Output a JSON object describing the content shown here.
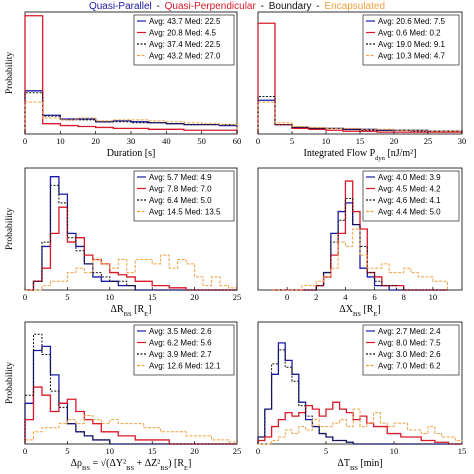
{
  "legend": {
    "series": [
      {
        "name": "Quasi-Parallel",
        "color": "#1a1aa6"
      },
      {
        "name": "Quasi-Perpendicular",
        "color": "#d7192a"
      },
      {
        "name": "Boundary",
        "color": "#111111"
      },
      {
        "name": "Encapsulated",
        "color": "#f0a040"
      }
    ],
    "separator": " - "
  },
  "chart_data": [
    {
      "type": "line",
      "panel": "duration",
      "xlabel": "Duration [s]",
      "ylabel": "Probability",
      "xlim": [
        0,
        60
      ],
      "ylim": [
        0,
        0.65
      ],
      "xticks": [
        "0",
        "10",
        "20",
        "30",
        "40",
        "50",
        "60"
      ],
      "edges": [
        0,
        5,
        10,
        15,
        20,
        25,
        30,
        35,
        40,
        45,
        50,
        55,
        60
      ],
      "series": [
        {
          "values": [
            0.23,
            0.1,
            0.08,
            0.08,
            0.065,
            0.07,
            0.065,
            0.06,
            0.055,
            0.05,
            0.05,
            0.045
          ]
        },
        {
          "values": [
            0.63,
            0.055,
            0.045,
            0.04,
            0.035,
            0.03,
            0.03,
            0.025,
            0.025,
            0.02,
            0.02,
            0.02
          ]
        },
        {
          "values": [
            0.22,
            0.095,
            0.075,
            0.075,
            0.065,
            0.065,
            0.06,
            0.06,
            0.055,
            0.05,
            0.05,
            0.05
          ]
        },
        {
          "values": [
            0.17,
            0.085,
            0.075,
            0.085,
            0.07,
            0.075,
            0.075,
            0.07,
            0.065,
            0.06,
            0.055,
            0.05
          ]
        }
      ],
      "stats": [
        "Avg: 43.7 Med: 22.5",
        "Avg: 20.8 Med: 4.5",
        "Avg: 37.4 Med: 22.5",
        "Avg: 43.2 Med: 27.0"
      ]
    },
    {
      "type": "line",
      "panel": "integrated-flow",
      "xlabel": "Integrated Flow P_dyn [nJ/m²]",
      "ylabel": "",
      "xlim": [
        0,
        30
      ],
      "ylim": [
        0,
        0.65
      ],
      "xticks": [
        "0",
        "5",
        "10",
        "15",
        "20",
        "25",
        "30"
      ],
      "edges": [
        0,
        2.5,
        5,
        7.5,
        10,
        12.5,
        15,
        17.5,
        20,
        22.5,
        25,
        27.5,
        30
      ],
      "series": [
        {
          "values": [
            0.18,
            0.05,
            0.035,
            0.03,
            0.03,
            0.025,
            0.025,
            0.02,
            0.02,
            0.02,
            0.015,
            0.015
          ]
        },
        {
          "values": [
            0.59,
            0.05,
            0.03,
            0.025,
            0.02,
            0.015,
            0.015,
            0.01,
            0.01,
            0.01,
            0.01,
            0.01
          ]
        },
        {
          "values": [
            0.2,
            0.05,
            0.035,
            0.03,
            0.03,
            0.025,
            0.02,
            0.02,
            0.02,
            0.015,
            0.015,
            0.015
          ]
        },
        {
          "values": [
            0.17,
            0.06,
            0.04,
            0.035,
            0.03,
            0.03,
            0.025,
            0.025,
            0.02,
            0.02,
            0.015,
            0.015
          ]
        }
      ],
      "stats": [
        "Avg: 20.6 Med: 7.5",
        "Avg: 0.6 Med: 0.2",
        "Avg: 19.0 Med: 9.1",
        "Avg: 10.3 Med: 4.7"
      ]
    },
    {
      "type": "line",
      "panel": "delta-r",
      "xlabel": "ΔR_BS [R_E]",
      "ylabel": "Probability",
      "xlim": [
        0,
        25
      ],
      "ylim": [
        0,
        0.28
      ],
      "xticks": [
        "0",
        "5",
        "10",
        "15",
        "20",
        "25"
      ],
      "edges": [
        0,
        1,
        2,
        3,
        4,
        5,
        6,
        7,
        8,
        9,
        10,
        11,
        12,
        13,
        14,
        15,
        16,
        17,
        18,
        19,
        20,
        21,
        22,
        23,
        24,
        25
      ],
      "series": [
        {
          "values": [
            0,
            0.02,
            0.1,
            0.26,
            0.22,
            0.13,
            0.1,
            0.06,
            0.03,
            0.02,
            0.02,
            0.01,
            0.01,
            0,
            0,
            0,
            0,
            0,
            0,
            0,
            0,
            0,
            0,
            0,
            0
          ]
        },
        {
          "values": [
            0,
            0.02,
            0.05,
            0.13,
            0.19,
            0.11,
            0.12,
            0.08,
            0.07,
            0.06,
            0.04,
            0.035,
            0.03,
            0.02,
            0.02,
            0.01,
            0.01,
            0.005,
            0.005,
            0,
            0,
            0,
            0,
            0,
            0
          ]
        },
        {
          "values": [
            0,
            0.02,
            0.11,
            0.24,
            0.2,
            0.12,
            0.09,
            0.06,
            0.04,
            0.03,
            0.02,
            0.02,
            0.01,
            0,
            0,
            0,
            0,
            0,
            0,
            0,
            0,
            0,
            0,
            0,
            0
          ]
        },
        {
          "values": [
            0,
            0,
            0.01,
            0.02,
            0.02,
            0.04,
            0.05,
            0.04,
            0.07,
            0.06,
            0.05,
            0.07,
            0.04,
            0.07,
            0.07,
            0.06,
            0.08,
            0.05,
            0.07,
            0.06,
            0.03,
            0.01,
            0.03,
            0.01,
            0.005
          ]
        }
      ],
      "stats": [
        "Avg: 5.7 Med: 4.9",
        "Avg: 7.8 Med: 7.0",
        "Avg: 6.4 Med: 5.0",
        "Avg: 14.5 Med: 13.5"
      ]
    },
    {
      "type": "line",
      "panel": "delta-x",
      "xlabel": "ΔX_BS [R_E]",
      "ylabel": "",
      "xlim": [
        -2,
        12
      ],
      "ylim": [
        0,
        0.28
      ],
      "xticks": [
        "0",
        "2",
        "4",
        "6",
        "8",
        "10"
      ],
      "xtick_values": [
        0,
        2,
        4,
        6,
        8,
        10
      ],
      "edges": [
        -1,
        -0.5,
        0,
        0.5,
        1,
        1.5,
        2,
        2.5,
        3,
        3.5,
        4,
        4.5,
        5,
        5.5,
        6,
        6.5,
        7,
        7.5,
        8,
        8.5,
        9,
        9.5,
        10,
        10.5,
        11
      ],
      "series": [
        {
          "values": [
            0,
            0,
            0,
            0,
            0,
            0,
            0.01,
            0.04,
            0.13,
            0.18,
            0.2,
            0.15,
            0.05,
            0.03,
            0.01,
            0.01,
            0,
            0,
            0,
            0,
            0,
            0,
            0,
            0
          ]
        },
        {
          "values": [
            0,
            0,
            0,
            0,
            0,
            0,
            0.01,
            0.03,
            0.08,
            0.13,
            0.25,
            0.18,
            0.14,
            0.04,
            0.03,
            0.01,
            0.01,
            0.01,
            0,
            0,
            0,
            0,
            0,
            0
          ]
        },
        {
          "values": [
            0,
            0,
            0,
            0,
            0,
            0,
            0.01,
            0.04,
            0.11,
            0.16,
            0.21,
            0.15,
            0.1,
            0.04,
            0.02,
            0.01,
            0.01,
            0,
            0,
            0,
            0,
            0,
            0,
            0
          ]
        },
        {
          "values": [
            0,
            0,
            0,
            0,
            0.01,
            0.01,
            0.02,
            0.03,
            0.05,
            0.11,
            0.1,
            0.14,
            0.08,
            0.05,
            0.05,
            0.06,
            0.04,
            0.04,
            0.05,
            0.04,
            0.03,
            0.03,
            0.02,
            0.02
          ]
        }
      ],
      "stats": [
        "Avg: 4.0 Med: 3.9",
        "Avg: 4.5 Med: 4.2",
        "Avg: 4.6 Med: 4.1",
        "Avg: 4.4 Med: 5.0"
      ]
    },
    {
      "type": "line",
      "panel": "delta-rho",
      "xlabel": "Δρ_BS = √(ΔY²_BS + ΔZ²_BS) [R_E]",
      "ylabel": "Probability",
      "xlim": [
        0,
        25
      ],
      "ylim": [
        0,
        0.3
      ],
      "xticks": [
        "0",
        "5",
        "10",
        "15",
        "20",
        "25"
      ],
      "edges": [
        0,
        1,
        2,
        3,
        4,
        5,
        6,
        7,
        8,
        9,
        10,
        11,
        12,
        13,
        14,
        15,
        16,
        17,
        18,
        19,
        20,
        21,
        22,
        23,
        24,
        25
      ],
      "series": [
        {
          "values": [
            0.1,
            0.23,
            0.24,
            0.17,
            0.1,
            0.05,
            0.03,
            0.02,
            0.01,
            0.01,
            0,
            0,
            0,
            0,
            0,
            0,
            0,
            0,
            0,
            0,
            0,
            0,
            0,
            0,
            0
          ]
        },
        {
          "values": [
            0.06,
            0.14,
            0.12,
            0.08,
            0.1,
            0.11,
            0.08,
            0.06,
            0.05,
            0.03,
            0.03,
            0.02,
            0.02,
            0.01,
            0.01,
            0.01,
            0.01,
            0,
            0,
            0,
            0,
            0,
            0,
            0,
            0
          ]
        },
        {
          "values": [
            0.12,
            0.27,
            0.22,
            0.13,
            0.09,
            0.05,
            0.03,
            0.02,
            0.01,
            0.01,
            0,
            0,
            0,
            0,
            0,
            0,
            0,
            0,
            0,
            0,
            0,
            0,
            0,
            0,
            0
          ]
        },
        {
          "values": [
            0.01,
            0.03,
            0.04,
            0.04,
            0.05,
            0.06,
            0.05,
            0.07,
            0.06,
            0.05,
            0.06,
            0.05,
            0.05,
            0.05,
            0.04,
            0.04,
            0.03,
            0.03,
            0.03,
            0.02,
            0.02,
            0.02,
            0.01,
            0.01,
            0.005
          ]
        }
      ],
      "stats": [
        "Avg: 3.5 Med: 2.6",
        "Avg: 6.2 Med: 5.6",
        "Avg: 3.9 Med: 2.7",
        "Avg: 12.6 Med: 12.1"
      ]
    },
    {
      "type": "line",
      "panel": "delta-t",
      "xlabel": "ΔT_BS [min]",
      "ylabel": "",
      "xlim": [
        0,
        15
      ],
      "ylim": [
        0,
        0.35
      ],
      "xticks": [
        "0",
        "5",
        "10",
        "15"
      ],
      "edges": [
        0,
        0.5,
        1,
        1.5,
        2,
        2.5,
        3,
        3.5,
        4,
        4.5,
        5,
        5.5,
        6,
        6.5,
        7,
        7.5,
        8,
        8.5,
        9,
        9.5,
        10,
        10.5,
        11,
        11.5,
        12,
        12.5,
        13,
        13.5,
        14,
        14.5,
        15
      ],
      "series": [
        {
          "values": [
            0.02,
            0.1,
            0.2,
            0.29,
            0.24,
            0.2,
            0.12,
            0.07,
            0.05,
            0.03,
            0.02,
            0.01,
            0.01,
            0.005,
            0,
            0,
            0,
            0,
            0,
            0,
            0,
            0,
            0,
            0,
            0,
            0,
            0,
            0,
            0,
            0
          ]
        },
        {
          "values": [
            0.01,
            0.02,
            0.05,
            0.07,
            0.09,
            0.08,
            0.09,
            0.11,
            0.1,
            0.08,
            0.1,
            0.12,
            0.1,
            0.09,
            0.07,
            0.08,
            0.06,
            0.05,
            0.05,
            0.03,
            0.03,
            0.02,
            0.02,
            0.02,
            0.01,
            0.01,
            0.005,
            0.005,
            0,
            0
          ]
        },
        {
          "values": [
            0.02,
            0.1,
            0.23,
            0.27,
            0.22,
            0.18,
            0.11,
            0.08,
            0.05,
            0.03,
            0.02,
            0.01,
            0.01,
            0.005,
            0,
            0,
            0,
            0,
            0,
            0,
            0,
            0,
            0,
            0,
            0,
            0,
            0,
            0,
            0,
            0
          ]
        },
        {
          "values": [
            0,
            0,
            0.01,
            0.02,
            0.04,
            0.03,
            0.05,
            0.04,
            0.07,
            0.05,
            0.05,
            0.06,
            0.07,
            0.05,
            0.1,
            0.05,
            0.06,
            0.09,
            0.06,
            0.05,
            0.06,
            0.06,
            0.04,
            0.04,
            0.03,
            0.05,
            0.03,
            0.02,
            0.02,
            0.01
          ]
        }
      ],
      "stats": [
        "Avg: 2.7 Med: 2.4",
        "Avg: 8.0 Med: 7.5",
        "Avg: 3.0 Med: 2.6",
        "Avg: 7.0 Med: 6.2"
      ]
    }
  ]
}
